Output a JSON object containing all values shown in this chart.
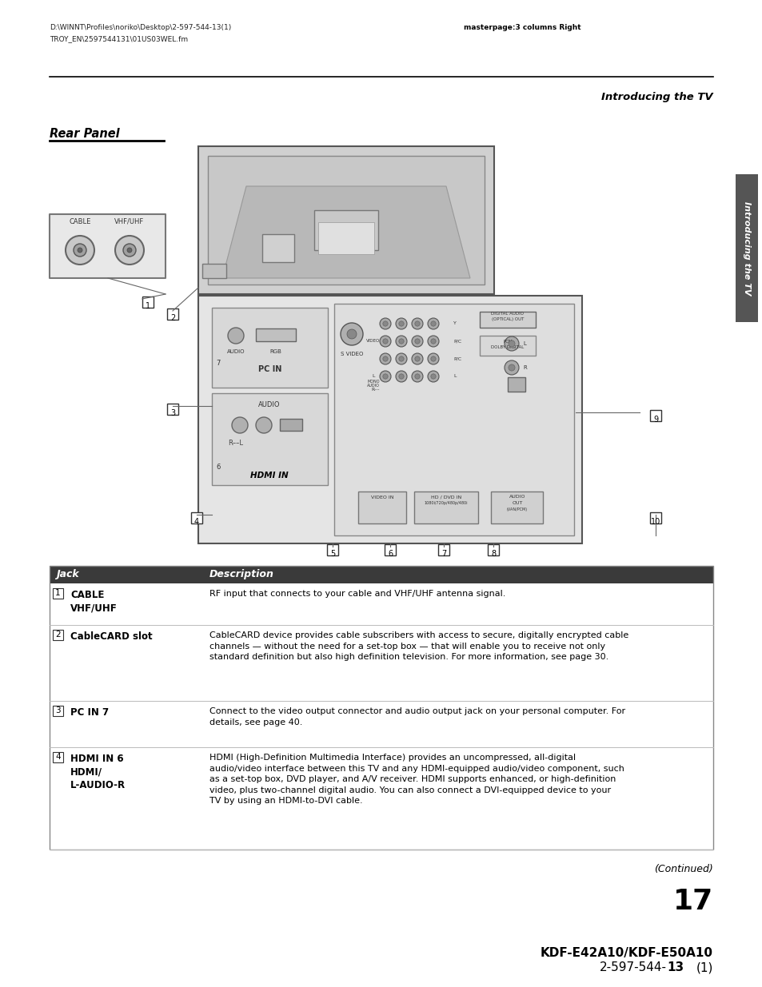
{
  "bg_color": "#ffffff",
  "header_line1": "D:\\WINNT\\Profiles\\noriko\\Desktop\\2-597-544-13(1)",
  "header_line2": "TROY_EN\\2597544131\\01US03WEL.fm",
  "header_right": "masterpage:3 columns Right",
  "section_title": "Introducing the TV",
  "rear_panel_title": "Rear Panel",
  "sidebar_text": "Introducing the TV",
  "page_number": "17",
  "bottom_line1": "KDF-E42A10/KDF-E50A10",
  "bottom_line2_normal": "2-597-544-",
  "bottom_line2_bold": "13",
  "bottom_line2_end": "(1)",
  "continued_text": "(Continued)",
  "table_header_jack": "Jack",
  "table_header_desc": "Description",
  "table_header_bg": "#3a3a3a",
  "table_header_fg": "#ffffff",
  "table_rows": [
    {
      "num": "1",
      "jack": "CABLE\nVHF/UHF",
      "desc": "RF input that connects to your cable and VHF/UHF antenna signal."
    },
    {
      "num": "2",
      "jack": "CableCARD slot",
      "desc": "CableCARD device provides cable subscribers with access to secure, digitally encrypted cable\nchannels — without the need for a set-top box — that will enable you to receive not only\nstandard definition but also high definition television. For more information, see page 30."
    },
    {
      "num": "3",
      "jack": "PC IN 7",
      "desc": "Connect to the video output connector and audio output jack on your personal computer. For\ndetails, see page 40."
    },
    {
      "num": "4",
      "jack": "HDMI IN 6\nHDMI/\nL-AUDIO-R",
      "desc": "HDMI (High-Definition Multimedia Interface) provides an uncompressed, all-digital\naudio/video interface between this TV and any HDMI-equipped audio/video component, such\nas a set-top box, DVD player, and A/V receiver. HDMI supports enhanced, or high-definition\nvideo, plus two-channel digital audio. You can also connect a DVI-equipped device to your\nTV by using an HDMI-to-DVI cable."
    }
  ]
}
